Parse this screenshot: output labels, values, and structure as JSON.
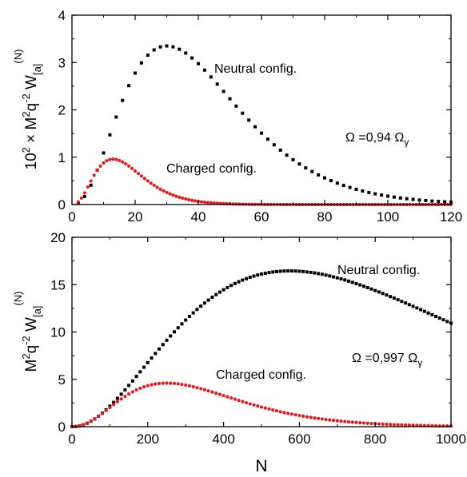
{
  "chart_data": [
    {
      "type": "scatter",
      "xlim": [
        0,
        120
      ],
      "ylim": [
        0,
        4
      ],
      "xticks": [
        "0",
        "20",
        "40",
        "60",
        "80",
        "100",
        "120"
      ],
      "yticks": [
        "0",
        "1",
        "2",
        "3",
        "4"
      ],
      "ylabel": {
        "prefix": "10",
        "prefix_sup": "2",
        "times": " × M",
        "m_sup": "2",
        "q": "q",
        "q_sup": "-2",
        "w": " W",
        "w_sub": "[a]",
        "w_sup": "(N)"
      },
      "omega_label": {
        "symbol": "Ω",
        "value": " =0,94 ",
        "symbol2": "Ω",
        "sub": "γ"
      },
      "series": [
        {
          "name": "Neutral config.",
          "color": "#000000",
          "marker": "square",
          "peak_x": 30,
          "peak_y": 3.35,
          "x_start": 2,
          "x_end": 120,
          "step": 2
        },
        {
          "name": "Charged config.",
          "color": "#e41a1c",
          "marker": "circle",
          "peak_x": 13,
          "peak_y": 0.96,
          "x_start": 2,
          "x_end": 120,
          "step": 1
        }
      ]
    },
    {
      "type": "scatter",
      "xlim": [
        0,
        1000
      ],
      "ylim": [
        0,
        20
      ],
      "xticks": [
        "0",
        "200",
        "400",
        "600",
        "800",
        "1000"
      ],
      "yticks": [
        "0",
        "5",
        "10",
        "15",
        "20"
      ],
      "xlabel": "N",
      "ylabel": {
        "prefix": "",
        "prefix_sup": "",
        "times": "M",
        "m_sup": "2",
        "q": "q",
        "q_sup": "-2",
        "w": " W",
        "w_sub": "[a]",
        "w_sup": "(N)"
      },
      "omega_label": {
        "symbol": "Ω",
        "value": " =0,997 ",
        "symbol2": "Ω",
        "sub": "γ"
      },
      "series": [
        {
          "name": "Neutral config.",
          "color": "#000000",
          "marker": "square",
          "peak_x": 575,
          "peak_y": 16.45,
          "x_start": 0,
          "x_end": 1000,
          "step": 10
        },
        {
          "name": "Charged config.",
          "color": "#e41a1c",
          "marker": "circle",
          "peak_x": 250,
          "peak_y": 4.6,
          "x_start": 0,
          "x_end": 1000,
          "step": 10
        }
      ]
    }
  ]
}
